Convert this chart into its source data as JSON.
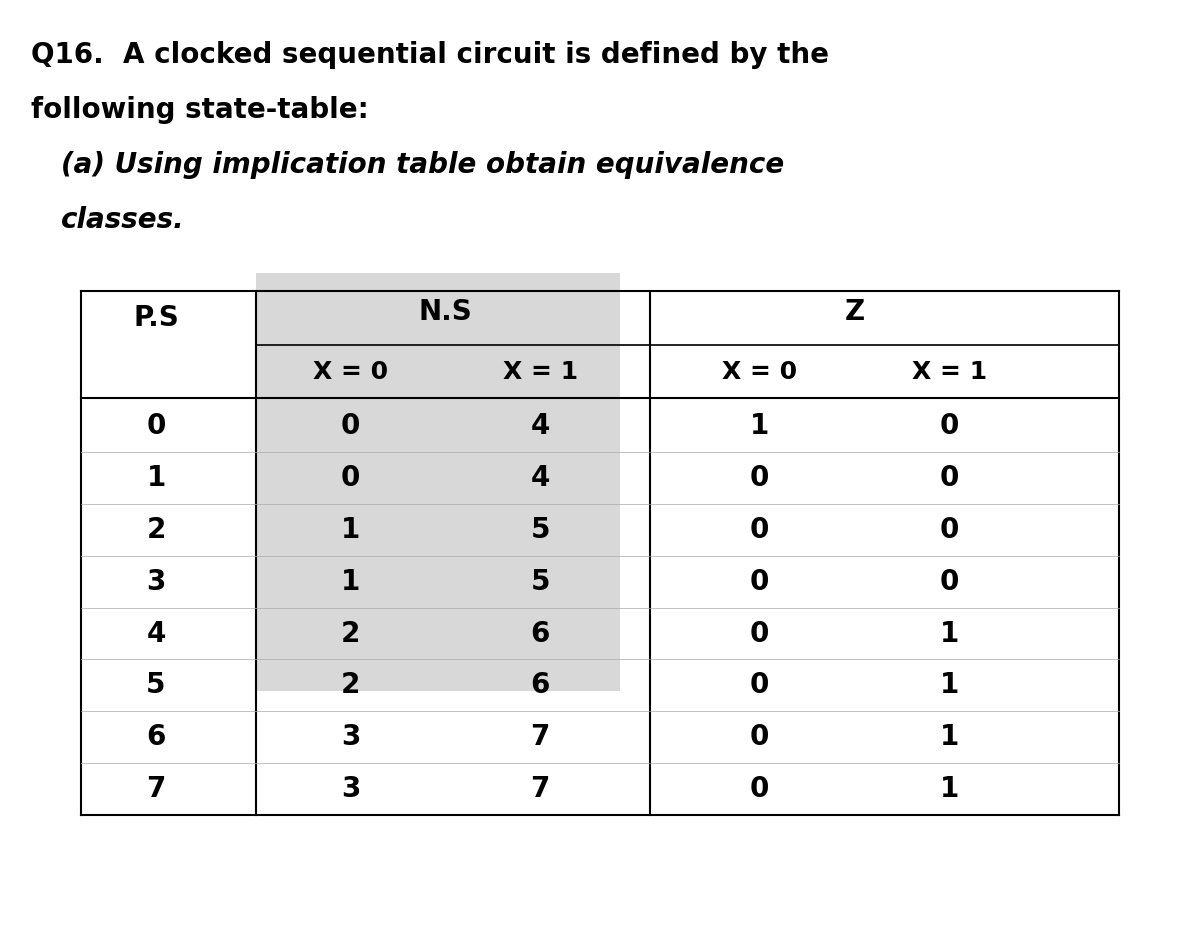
{
  "title_line1": "Q16.  A clocked sequential circuit is defined by the",
  "title_line2": "following state-table:",
  "subtitle": "(a) Using implication table obtain equivalence",
  "subtitle_line2": "classes.",
  "table_header_row1": [
    "P.S",
    "N.S",
    "",
    "Z",
    ""
  ],
  "table_header_row2": [
    "",
    "X = 0",
    "X = 1",
    "X = 0",
    "X = 1"
  ],
  "ps_col": [
    "0",
    "1",
    "2",
    "3",
    "4",
    "5",
    "6",
    "7"
  ],
  "ns_x0_col": [
    "0",
    "0",
    "1",
    "1",
    "2",
    "2",
    "3",
    "3"
  ],
  "ns_x1_col": [
    "4",
    "4",
    "5",
    "5",
    "6",
    "6",
    "7",
    "7"
  ],
  "z_x0_col": [
    "1",
    "0",
    "0",
    "0",
    "0",
    "0",
    "0",
    "0"
  ],
  "z_x1_col": [
    "0",
    "0",
    "0",
    "0",
    "1",
    "1",
    "1",
    "1"
  ],
  "bg_color": "#ffffff",
  "text_color": "#000000",
  "table_bg": "#d8d8d8",
  "title_fontsize": 20,
  "subtitle_fontsize": 20,
  "header_fontsize": 18,
  "cell_fontsize": 18,
  "bold_font": "bold"
}
